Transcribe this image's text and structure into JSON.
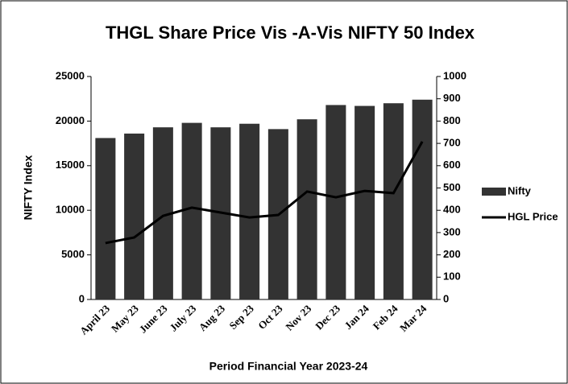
{
  "chart_data": {
    "type": "bar_line",
    "title": "THGL Share Price Vis -A-Vis NIFTY 50 Index",
    "ylabel": "NIFTY Index",
    "xlabel": "Period Financial Year 2023-24",
    "categories": [
      "April 23",
      "May 23",
      "June 23",
      "July 23",
      "Aug 23",
      "Sep 23",
      "Oct 23",
      "Nov 23",
      "Dec 23",
      "Jan 24",
      "Feb 24",
      "Mar 24"
    ],
    "series": [
      {
        "name": "Nifty",
        "type": "bar",
        "color": "#333333",
        "values": [
          18100,
          18600,
          19300,
          19800,
          19300,
          19700,
          19100,
          20200,
          21800,
          21700,
          22000,
          22400
        ]
      },
      {
        "name": "HGL Price",
        "type": "line",
        "axis": "y2",
        "color": "#000000",
        "values": [
          253,
          278,
          375,
          412,
          390,
          368,
          379,
          484,
          458,
          487,
          477,
          708
        ]
      }
    ],
    "ylim": [
      0,
      25000
    ],
    "yticks": [
      0,
      5000,
      10000,
      15000,
      20000,
      25000
    ],
    "y2lim": [
      0,
      1000
    ],
    "y2ticks": [
      0,
      100,
      200,
      300,
      400,
      500,
      600,
      700,
      800,
      900,
      1000
    ],
    "legend": "right"
  }
}
